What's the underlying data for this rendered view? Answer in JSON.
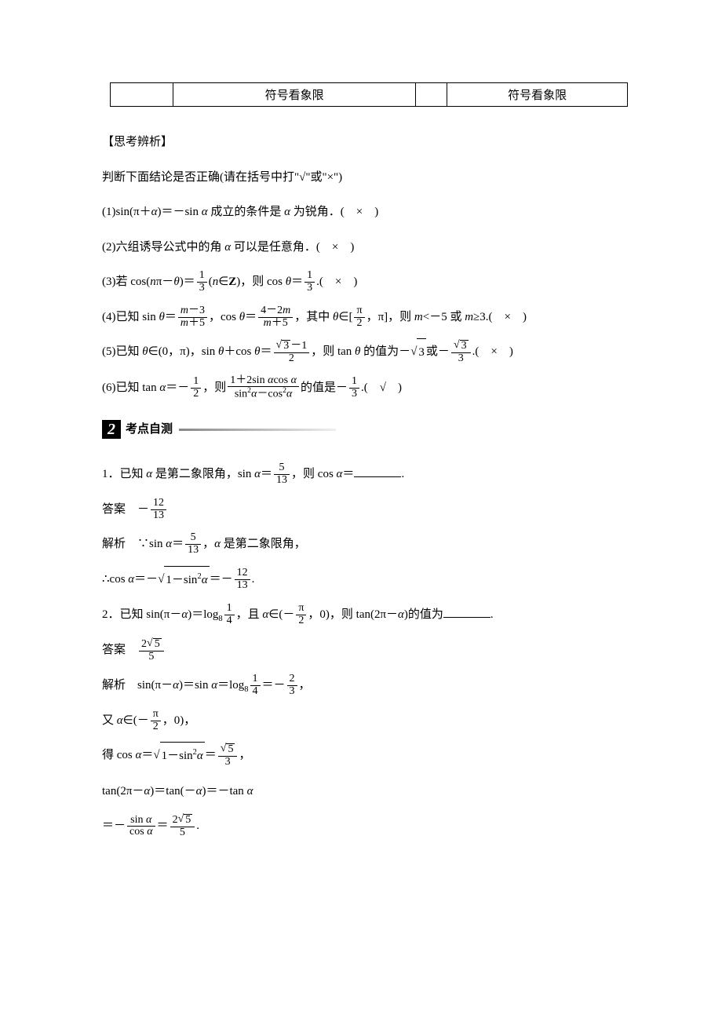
{
  "top_table": {
    "col_widths": [
      "80px",
      "310px",
      "40px",
      "230px"
    ],
    "cells": [
      "",
      "符号看象限",
      "",
      "符号看象限"
    ]
  },
  "analysis": {
    "title": "【思考辨析】",
    "intro": "判断下面结论是否正确(请在括号中打\"√\"或\"×\")",
    "items": [
      {
        "text_html": "(1)sin(π＋<span class='it'>α</span>)＝－sin&nbsp;<span class='it'>α</span> 成立的条件是 <span class='it'>α</span> 为锐角．(　×　)"
      },
      {
        "text_html": "(2)六组诱导公式中的角 <span class='it'>α</span> 可以是任意角．(　×　)"
      },
      {
        "text_html": "(3)若 cos(<span class='it'>n</span>π－<span class='it'>θ</span>)＝<span class='frac'><span class='num'>1</span><span class='den'>3</span></span>(<span class='it'>n</span>∈<b>Z</b>)，则 cos&nbsp;<span class='it'>θ</span>＝<span class='frac'><span class='num'>1</span><span class='den'>3</span></span>.(　×　)"
      },
      {
        "text_html": "(4)已知 sin&nbsp;<span class='it'>θ</span>＝<span class='frac'><span class='num'><span class='it'>m</span>－3</span><span class='den'><span class='it'>m</span>＋5</span></span>，cos&nbsp;<span class='it'>θ</span>＝<span class='frac'><span class='num'>4－2<span class='it'>m</span></span><span class='den'><span class='it'>m</span>＋5</span></span>，其中 <span class='it'>θ</span>∈[<span class='frac'><span class='num'>π</span><span class='den'>2</span></span>，π]，则 <span class='it'>m</span>&lt;－5 或 <span class='it'>m</span>≥3.(　×　)"
      },
      {
        "text_html": "(5)已知 <span class='it'>θ</span>∈(0，π)，sin&nbsp;<span class='it'>θ</span>＋cos&nbsp;<span class='it'>θ</span>＝<span class='frac'><span class='num'><span class='sqrt'><span class='sqrt-sym'>√</span><span class='sqrt-body'>3</span></span>－1</span><span class='den'>2</span></span>，则 tan&nbsp;<span class='it'>θ</span> 的值为－<span class='sqrt'><span class='sqrt-sym'>√</span><span class='sqrt-body'>3</span></span>或－<span class='frac'><span class='num'><span class='sqrt'><span class='sqrt-sym'>√</span><span class='sqrt-body'>3</span></span></span><span class='den'>3</span></span>.(　×　)"
      },
      {
        "text_html": "(6)已知 tan&nbsp;<span class='it'>α</span>＝－<span class='frac'><span class='num'>1</span><span class='den'>2</span></span>，则<span class='frac'><span class='num'>1＋2sin&nbsp;<span class='it'>α</span>cos&nbsp;<span class='it'>α</span></span><span class='den'>sin<sup>2</sup><span class='it'>α</span>－cos<sup>2</sup><span class='it'>α</span></span></span>的值是－<span class='frac'><span class='num'>1</span><span class='den'>3</span></span>.(　√　)"
      }
    ]
  },
  "section2": {
    "number": "2",
    "label": "考点自测"
  },
  "q1": {
    "stem_html": "1．已知 <span class='it'>α</span> 是第二象限角，sin&nbsp;<span class='it'>α</span>＝<span class='frac'><span class='num'>5</span><span class='den'>13</span></span>，则 cos&nbsp;<span class='it'>α</span>＝<span class='blank'></span>.",
    "answer_html": "答案　－<span class='frac'><span class='num'>12</span><span class='den'>13</span></span>",
    "jiexi": [
      "解析　∵sin&nbsp;<span class='it'>α</span>＝<span class='frac'><span class='num'>5</span><span class='den'>13</span></span>，<span class='it'>α</span> 是第二象限角，",
      "∴cos&nbsp;<span class='it'>α</span>＝－<span class='sqrt'><span class='sqrt-sym'>√</span><span class='sqrt-body'>1－sin<sup>2</sup><span class='it'>α</span></span></span>＝－<span class='frac'><span class='num'>12</span><span class='den'>13</span></span>."
    ]
  },
  "q2": {
    "stem_html": "2．已知 sin(π－<span class='it'>α</span>)＝log<sub>8</sub><span class='frac'><span class='num'>1</span><span class='den'>4</span></span>，且 <span class='it'>α</span>∈(－<span class='frac'><span class='num'>π</span><span class='den'>2</span></span>，0)，则 tan(2π－<span class='it'>α</span>)的值为<span class='blank'></span>.",
    "answer_html": "答案　<span class='frac'><span class='num'>2<span class='sqrt'><span class='sqrt-sym'>√</span><span class='sqrt-body'>5</span></span></span><span class='den'>5</span></span>",
    "jiexi": [
      "解析　sin(π－<span class='it'>α</span>)＝sin&nbsp;<span class='it'>α</span>＝log<sub>8</sub><span class='frac'><span class='num'>1</span><span class='den'>4</span></span>＝－<span class='frac'><span class='num'>2</span><span class='den'>3</span></span>，",
      "又 <span class='it'>α</span>∈(－<span class='frac'><span class='num'>π</span><span class='den'>2</span></span>，0)，",
      "得 cos&nbsp;<span class='it'>α</span>＝<span class='sqrt'><span class='sqrt-sym'>√</span><span class='sqrt-body'>1－sin<sup>2</sup><span class='it'>α</span></span></span>＝<span class='frac'><span class='num'><span class='sqrt'><span class='sqrt-sym'>√</span><span class='sqrt-body'>5</span></span></span><span class='den'>3</span></span>，",
      "tan(2π－<span class='it'>α</span>)＝tan(－<span class='it'>α</span>)＝－tan&nbsp;<span class='it'>α</span>",
      "＝－<span class='frac'><span class='num'>sin&nbsp;<span class='it'>α</span></span><span class='den'>cos&nbsp;<span class='it'>α</span></span></span>＝<span class='frac'><span class='num'>2<span class='sqrt'><span class='sqrt-sym'>√</span><span class='sqrt-body'>5</span></span></span><span class='den'>5</span></span>."
    ]
  }
}
